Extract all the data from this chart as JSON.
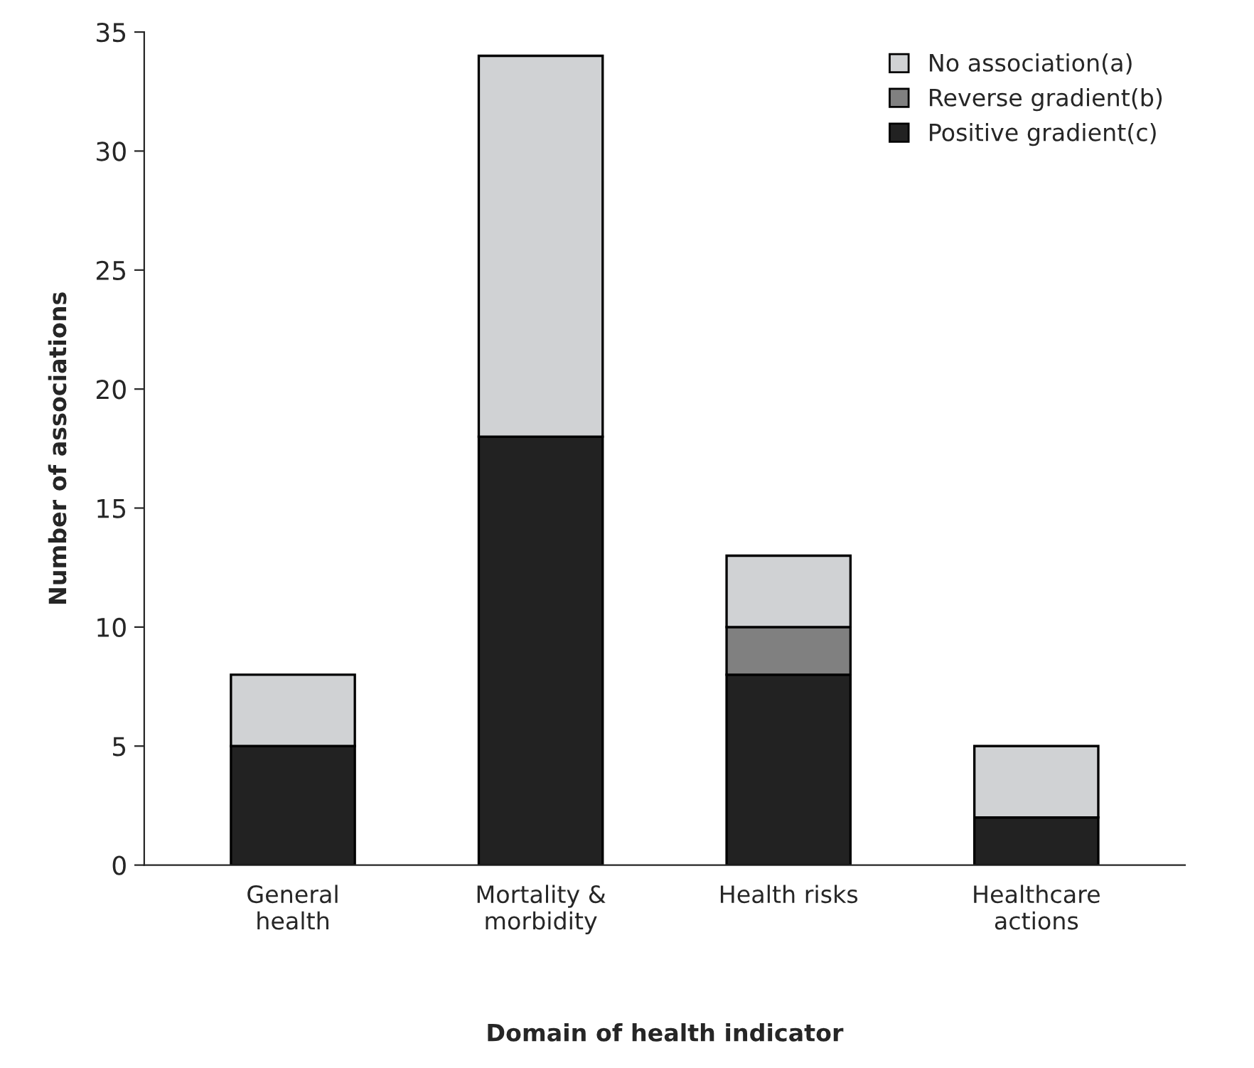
{
  "chart_data": {
    "type": "bar",
    "stacked": true,
    "xlabel": "Domain of health indicator",
    "ylabel": "Number of associations",
    "categories": [
      "General\nhealth",
      "Mortality &\nmorbidity",
      "Health risks",
      "Healthcare\nactions"
    ],
    "series": [
      {
        "name": "Positive gradient(c)",
        "color": "#222222",
        "values": [
          5,
          18,
          8,
          2
        ]
      },
      {
        "name": "Reverse gradient(b)",
        "color": "#808080",
        "values": [
          null,
          null,
          2,
          null
        ]
      },
      {
        "name": "No association(a)",
        "color": "#d0d2d4",
        "values": [
          3,
          16,
          3,
          3
        ]
      }
    ],
    "ylim": [
      0,
      35
    ],
    "yticks": [
      0,
      5,
      10,
      15,
      20,
      25,
      30,
      35
    ],
    "grid": false,
    "legend": "top right"
  }
}
